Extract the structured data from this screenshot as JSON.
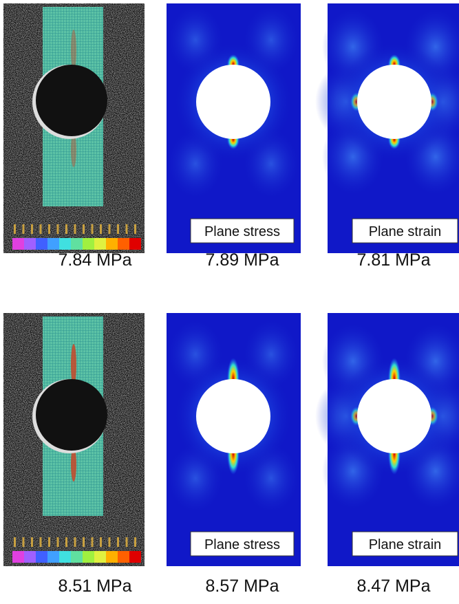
{
  "rows": [
    {
      "captions": [
        "7.84 MPa",
        "7.89 MPa",
        "7.81 MPa"
      ],
      "stress_label": "Plane stress",
      "strain_label": "Plane strain"
    },
    {
      "captions": [
        "8.51 MPa",
        "8.57 MPa",
        "8.47 MPa"
      ],
      "stress_label": "Plane stress",
      "strain_label": "Plane strain"
    }
  ]
}
